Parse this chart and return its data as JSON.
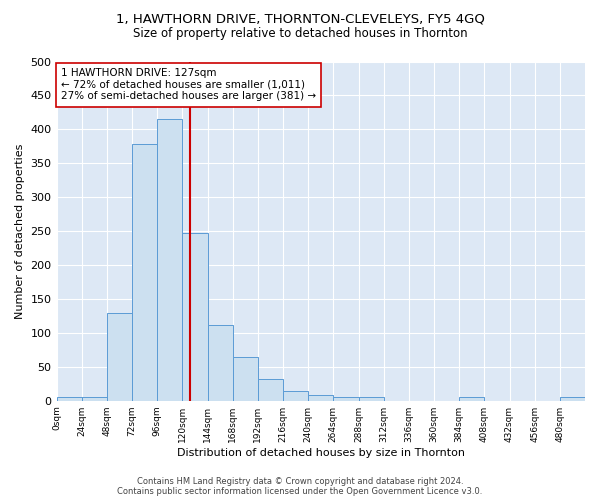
{
  "title": "1, HAWTHORN DRIVE, THORNTON-CLEVELEYS, FY5 4GQ",
  "subtitle": "Size of property relative to detached houses in Thornton",
  "xlabel": "Distribution of detached houses by size in Thornton",
  "ylabel": "Number of detached properties",
  "bar_edges": [
    0,
    24,
    48,
    72,
    96,
    120,
    144,
    168,
    192,
    216,
    240,
    264,
    288,
    312,
    336,
    360,
    384,
    408,
    432,
    456,
    480,
    504
  ],
  "bar_heights": [
    5,
    5,
    130,
    378,
    415,
    247,
    112,
    65,
    32,
    14,
    8,
    6,
    5,
    0,
    0,
    0,
    5,
    0,
    0,
    0,
    5
  ],
  "bar_color": "#cce0f0",
  "bar_edge_color": "#5b9bd5",
  "vline_x": 127,
  "vline_color": "#cc0000",
  "annotation_text": "1 HAWTHORN DRIVE: 127sqm\n← 72% of detached houses are smaller (1,011)\n27% of semi-detached houses are larger (381) →",
  "annotation_box_color": "#ffffff",
  "annotation_box_edge": "#cc0000",
  "ylim": [
    0,
    500
  ],
  "xlim": [
    0,
    504
  ],
  "ytick_interval": 50,
  "background_color": "#dde8f5",
  "footer_text": "Contains HM Land Registry data © Crown copyright and database right 2024.\nContains public sector information licensed under the Open Government Licence v3.0.",
  "tick_labels": [
    "0sqm",
    "24sqm",
    "48sqm",
    "72sqm",
    "96sqm",
    "120sqm",
    "144sqm",
    "168sqm",
    "192sqm",
    "216sqm",
    "240sqm",
    "264sqm",
    "288sqm",
    "312sqm",
    "336sqm",
    "360sqm",
    "384sqm",
    "408sqm",
    "432sqm",
    "456sqm",
    "480sqm"
  ],
  "title_fontsize": 9.5,
  "subtitle_fontsize": 8.5,
  "annotation_fontsize": 7.5,
  "axis_label_fontsize": 8,
  "ytick_fontsize": 8,
  "xtick_fontsize": 6.5
}
